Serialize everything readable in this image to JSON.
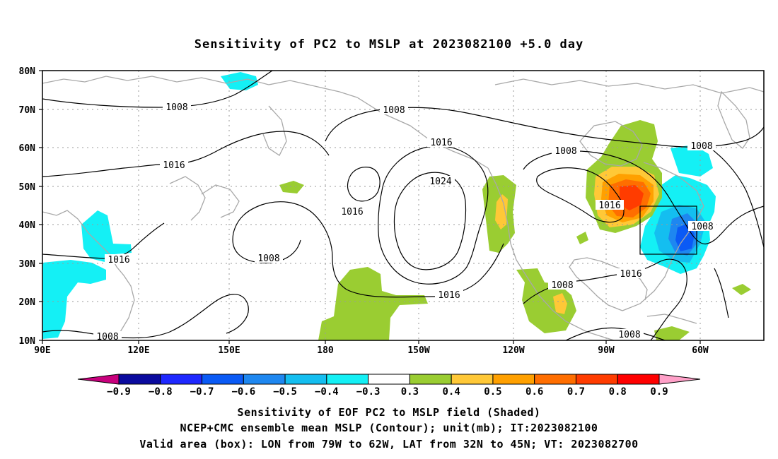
{
  "title": "Sensitivity of PC2 to MSLP at 2023082100 +5.0 day",
  "map": {
    "lon_ticks": [
      "90E",
      "120E",
      "150E",
      "180",
      "150W",
      "120W",
      "90W",
      "60W"
    ],
    "lat_ticks": [
      "80N",
      "70N",
      "60N",
      "50N",
      "40N",
      "30N",
      "20N",
      "10N"
    ],
    "domain": {
      "lon_min": 90,
      "lon_max": 315,
      "lat_min": 10,
      "lat_max": 80
    },
    "contour_interval_mb": 8,
    "contour_labels": [
      "1008",
      "1008",
      "1016",
      "1016",
      "1024",
      "1008",
      "1016",
      "1008",
      "1016",
      "1016",
      "1008",
      "1016",
      "1008",
      "1008",
      "1016",
      "1008",
      "1008"
    ],
    "valid_box": {
      "lon_west": "79W",
      "lon_east": "62W",
      "lat_south": "32N",
      "lat_north": "45N"
    }
  },
  "colorbar": {
    "labels": [
      "-0.9",
      "-0.8",
      "-0.7",
      "-0.6",
      "-0.5",
      "-0.4",
      "-0.3",
      "0.3",
      "0.4",
      "0.5",
      "0.6",
      "0.7",
      "0.8",
      "0.9"
    ],
    "colors": [
      "#0a0a9e",
      "#1e28ff",
      "#0a5af5",
      "#1e87f0",
      "#14bef0",
      "#14f0f5",
      "#ffffff",
      "#9acd32",
      "#ffc837",
      "#ffa000",
      "#ff6e00",
      "#ff3c00",
      "#ff0000"
    ],
    "below_color": "#c8007d",
    "above_color": "#ffa0c8"
  },
  "captions": {
    "line1": "Sensitivity of EOF PC2 to MSLP field (Shaded)",
    "line2": "NCEP+CMC ensemble mean MSLP (Contour); unit(mb); IT:2023082100",
    "line3": "Valid area (box): LON from 79W to 62W, LAT from 32N to 45N; VT: 2023082700"
  }
}
